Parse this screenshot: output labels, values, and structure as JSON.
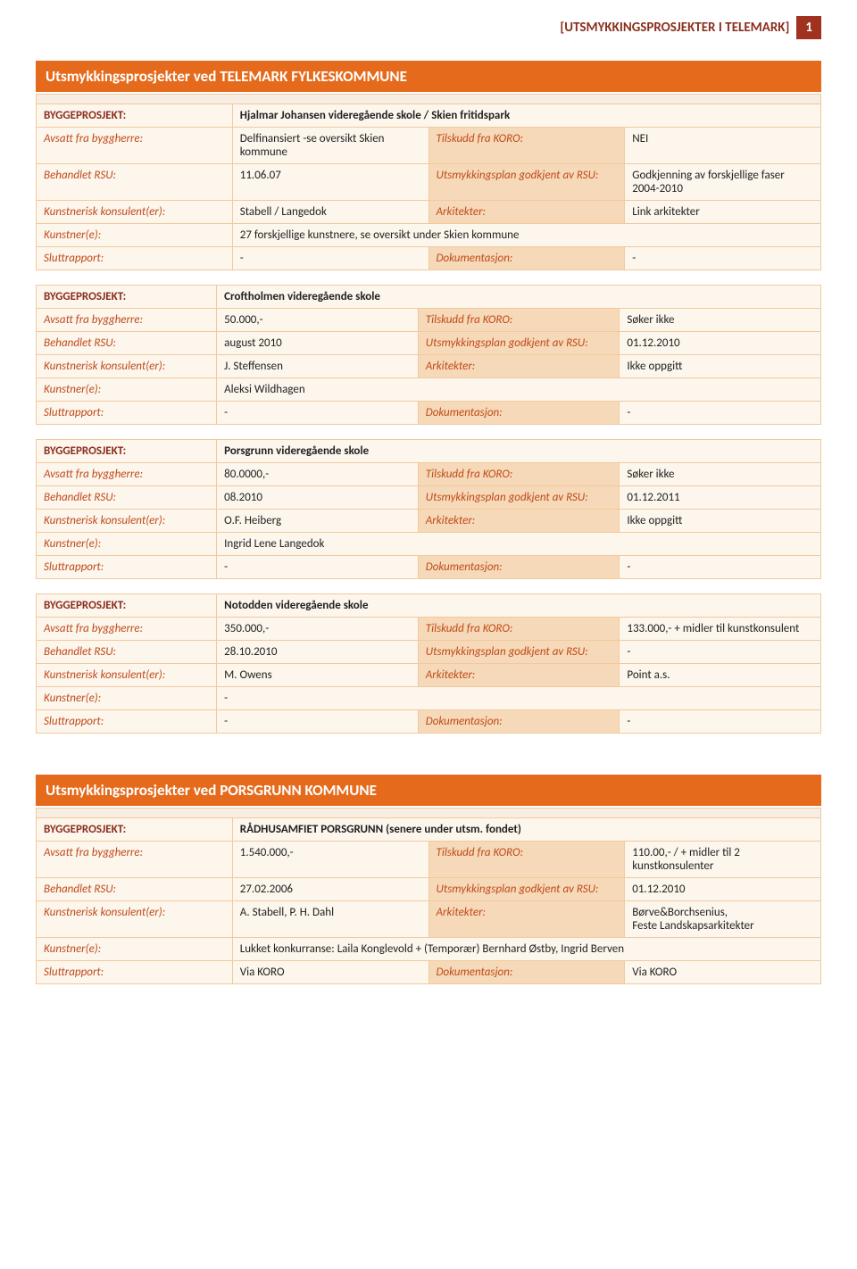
{
  "page_header": {
    "title": "[UTSMYKKINGSPROSJEKTER I TELEMARK]",
    "page_num": "1"
  },
  "section1": {
    "title": "Utsmykkingsprosjekter ved TELEMARK FYLKESKOMMUNE",
    "projects": [
      {
        "bygg": "Hjalmar Johansen videregående skole / Skien fritidspark",
        "avsatt": "Delfinansiert -se oversikt Skien kommune",
        "tilskudd": "NEI",
        "behandlet": "11.06.07",
        "utsmyk": "Godkjenning av forskjellige faser 2004-2010",
        "konsulent": "Stabell / Langedok",
        "arkitekt": "Link arkitekter",
        "kunstner": "27 forskjellige kunstnere, se oversikt under Skien kommune",
        "slutt": "-",
        "dok": "-"
      },
      {
        "bygg": "Croftholmen videregående skole",
        "avsatt": "50.000,-",
        "tilskudd": "Søker ikke",
        "behandlet": "august 2010",
        "utsmyk": "01.12.2010",
        "konsulent": "J. Steffensen",
        "arkitekt": "Ikke oppgitt",
        "kunstner": "Aleksi Wildhagen",
        "slutt": "-",
        "dok": "-"
      },
      {
        "bygg": "Porsgrunn videregående skole",
        "avsatt": "80.0000,-",
        "tilskudd": "Søker ikke",
        "behandlet": "08.2010",
        "utsmyk": "01.12.2011",
        "konsulent": "O.F. Heiberg",
        "arkitekt": "Ikke oppgitt",
        "kunstner": "Ingrid Lene Langedok",
        "slutt": "-",
        "dok": "-"
      },
      {
        "bygg": "Notodden videregående skole",
        "avsatt": "350.000,-",
        "tilskudd": "133.000,- + midler til kunstkonsulent",
        "behandlet": "28.10.2010",
        "utsmyk": "-",
        "konsulent": "M. Owens",
        "arkitekt": "Point a.s.",
        "kunstner": "-",
        "slutt": "-",
        "dok": "-"
      }
    ]
  },
  "section2": {
    "title": "Utsmykkingsprosjekter ved PORSGRUNN KOMMUNE",
    "projects": [
      {
        "bygg": "RÅDHUSAMFIET PORSGRUNN  (senere under utsm. fondet)",
        "avsatt": "1.540.000,-",
        "tilskudd": "110.00,-  /  + midler til 2 kunstkonsulenter",
        "behandlet": "27.02.2006",
        "utsmyk": "01.12.2010",
        "konsulent": "A. Stabell, P. H. Dahl",
        "arkitekt": "Børve&Borchsenius,\nFeste Landskapsarkitekter",
        "kunstner": "Lukket konkurranse: Laila Konglevold + (Temporær) Bernhard Østby, Ingrid Berven",
        "slutt": "Via KORO",
        "dok": "Via KORO"
      }
    ]
  },
  "labels": {
    "bygg": "BYGGEPROSJEKT:",
    "avsatt": "Avsatt fra byggherre:",
    "tilskudd": "Tilskudd fra KORO:",
    "behandlet": "Behandlet RSU:",
    "utsmyk": "Utsmykkingsplan godkjent av RSU:",
    "konsulent": "Kunstnerisk konsulent(er):",
    "arkitekt": "Arkitekter:",
    "kunstner": "Kunstner(e):",
    "slutt": "Sluttrapport:",
    "dok": "Dokumentasjon:"
  }
}
